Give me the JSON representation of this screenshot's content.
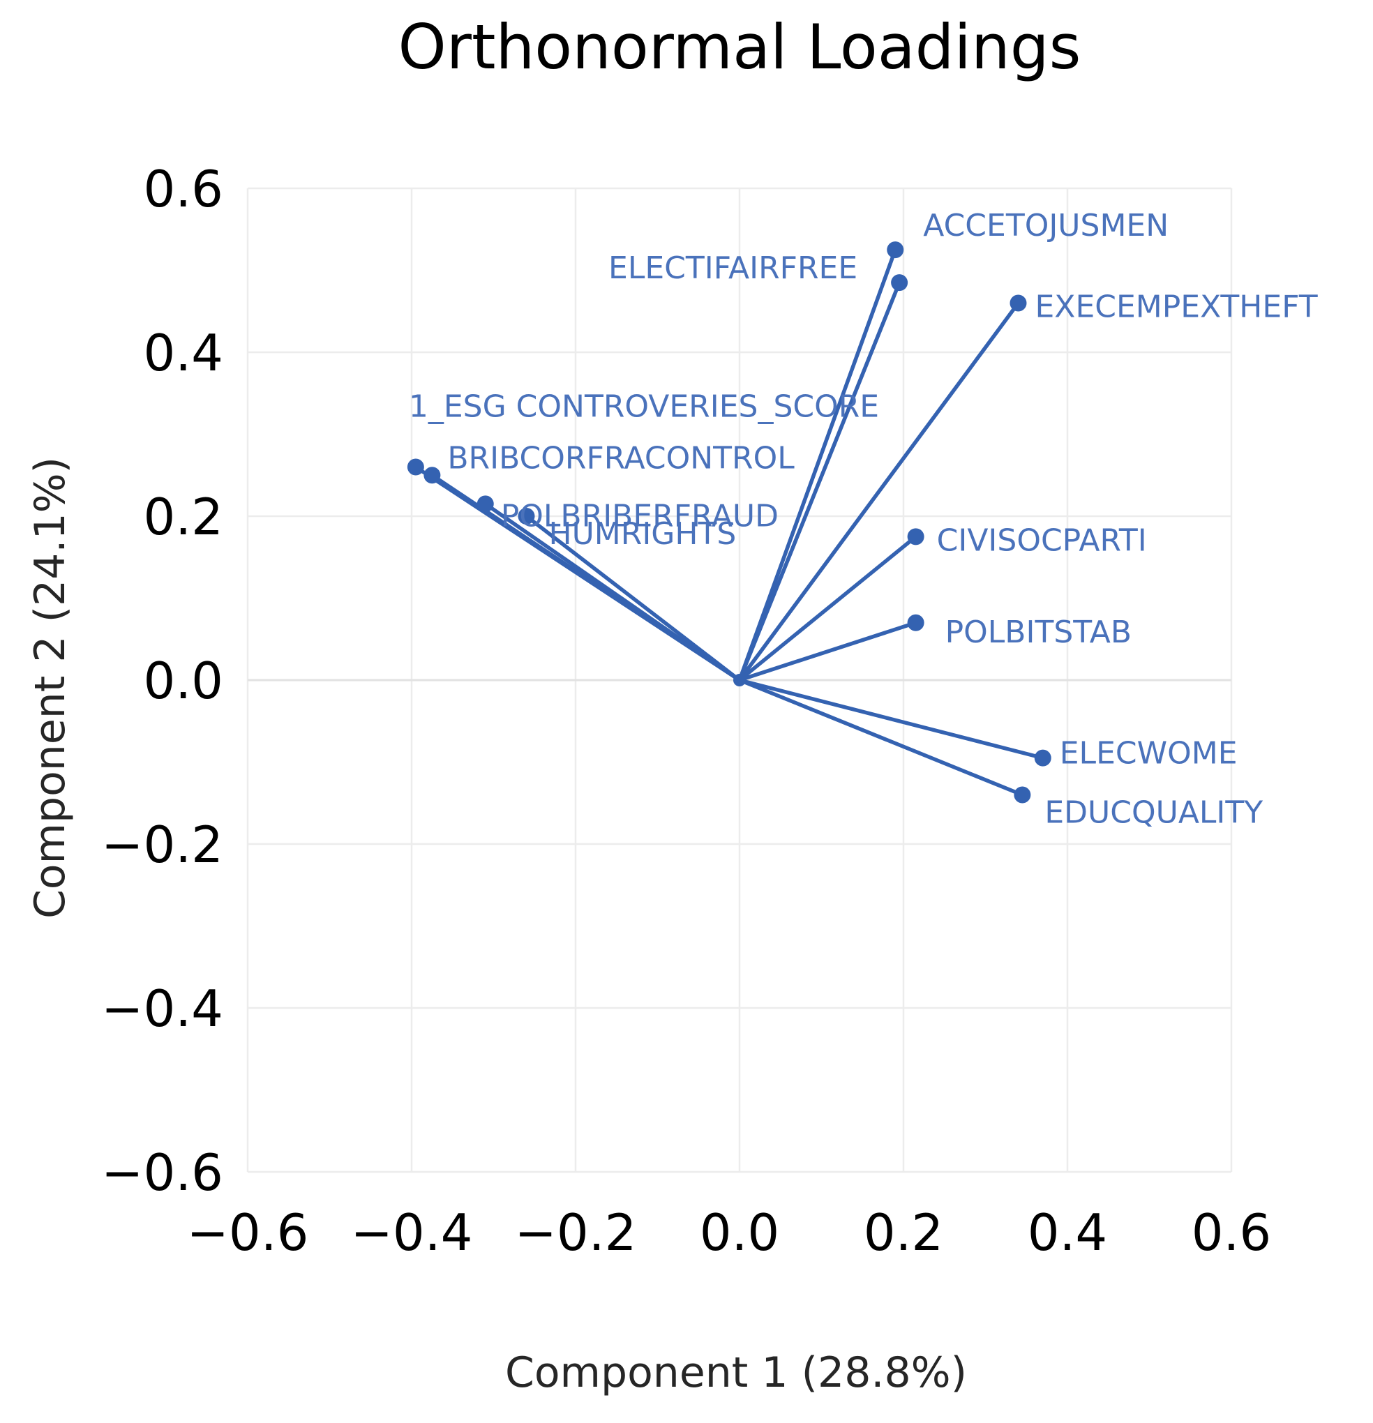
{
  "chart_data": {
    "type": "scatter",
    "subtype": "loading-vectors",
    "title": "Orthonormal Loadings",
    "xlabel": "Component 1 (28.8%)",
    "ylabel": "Component 2 (24.1%)",
    "xlim": [
      -0.6,
      0.6
    ],
    "ylim": [
      -0.6,
      0.6
    ],
    "x_ticks": [
      "−0.6",
      "−0.4",
      "−0.2",
      "0.0",
      "0.2",
      "0.4",
      "0.6"
    ],
    "y_ticks": [
      "0.6",
      "0.4",
      "0.2",
      "0.0",
      "−0.2",
      "−0.4",
      "−0.6"
    ],
    "grid": true,
    "color": "#3462b1",
    "label_color": "#4a72bb",
    "points": [
      {
        "name": "ACCETOJUSMEN",
        "x": 0.19,
        "y": 0.525
      },
      {
        "name": "ELECTIFAIRFREE",
        "x": 0.195,
        "y": 0.485
      },
      {
        "name": "EXECEMPEXTHEFT",
        "x": 0.34,
        "y": 0.46
      },
      {
        "name": "1_ESG CONTROVERIES_SCORE",
        "x": -0.395,
        "y": 0.26
      },
      {
        "name": "BRIBCORFRACONTROL",
        "x": -0.375,
        "y": 0.25
      },
      {
        "name": "POLBRIBERFRAUD",
        "x": -0.31,
        "y": 0.215
      },
      {
        "name": "HUMRIGHTS",
        "x": -0.26,
        "y": 0.2
      },
      {
        "name": "CIVISOCPARTI",
        "x": 0.215,
        "y": 0.175
      },
      {
        "name": "POLBITSTAB",
        "x": 0.215,
        "y": 0.07
      },
      {
        "name": "ELECWOME",
        "x": 0.37,
        "y": -0.095
      },
      {
        "name": "EDUCQUALITY",
        "x": 0.345,
        "y": -0.14
      }
    ]
  }
}
